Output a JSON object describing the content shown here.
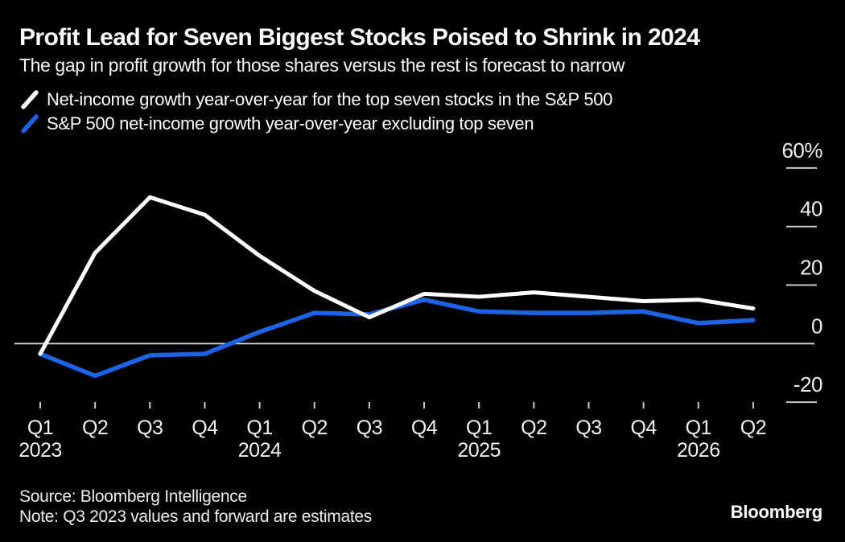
{
  "header": {
    "title": "Profit Lead for Seven Biggest Stocks Poised to Shrink in 2024",
    "subtitle": "The gap in profit growth for those shares versus the rest is forecast to narrow"
  },
  "legend": [
    {
      "label": "Net-income growth year-over-year for the top seven stocks in the S&P 500",
      "color": "#ffffff"
    },
    {
      "label": "S&P 500 net-income growth year-over-year excluding top seven",
      "color": "#1c63e8"
    }
  ],
  "footer": {
    "source": "Source: Bloomberg Intelligence",
    "note": "Note: Q3 2023 values and forward are estimates",
    "brand": "Bloomberg"
  },
  "colors": {
    "background": "#000000",
    "axis_text": "#f0f0f0",
    "tick": "#c9c9c9",
    "zero_line": "#d8d8d8",
    "series_top_seven": "#ffffff",
    "series_ex_top_seven": "#1c63e8"
  },
  "chart_data": {
    "type": "line",
    "title": "Profit Lead for Seven Biggest Stocks Poised to Shrink in 2024",
    "subtitle": "The gap in profit growth for those shares versus the rest is forecast to narrow",
    "unit": "%",
    "x_categories": [
      "Q1 2023",
      "Q2 2023",
      "Q3 2023",
      "Q4 2023",
      "Q1 2024",
      "Q2 2024",
      "Q3 2024",
      "Q4 2024",
      "Q1 2025",
      "Q2 2025",
      "Q3 2025",
      "Q4 2025",
      "Q1 2026",
      "Q2 2026"
    ],
    "x_tick_labels": [
      "Q1",
      "Q2",
      "Q3",
      "Q4",
      "Q1",
      "Q2",
      "Q3",
      "Q4",
      "Q1",
      "Q2",
      "Q3",
      "Q4",
      "Q1",
      "Q2"
    ],
    "year_labels": [
      {
        "index": 0,
        "label": "2023"
      },
      {
        "index": 4,
        "label": "2024"
      },
      {
        "index": 8,
        "label": "2025"
      },
      {
        "index": 12,
        "label": "2026"
      }
    ],
    "series": [
      {
        "name": "Net-income growth year-over-year for the top seven stocks in the S&P 500",
        "color": "#ffffff",
        "values": [
          -3.5,
          31,
          50,
          44,
          30,
          18,
          9,
          17,
          16,
          17.5,
          16,
          14.5,
          15,
          12
        ]
      },
      {
        "name": "S&P 500 net-income growth year-over-year excluding top seven",
        "color": "#1c63e8",
        "values": [
          -3.5,
          -11,
          -4,
          -3.5,
          4,
          10.5,
          10,
          15,
          11,
          10.5,
          10.5,
          11,
          7,
          8
        ]
      }
    ],
    "y_ticks": [
      {
        "value": 60,
        "label": "60%"
      },
      {
        "value": 40,
        "label": "40"
      },
      {
        "value": 20,
        "label": "20"
      },
      {
        "value": 0,
        "label": "0"
      },
      {
        "value": -20,
        "label": "-20"
      }
    ],
    "ylim": [
      -20,
      60
    ],
    "grid": "right-edge tick dashes only, full-width zero line",
    "legend_position": "top-left"
  }
}
